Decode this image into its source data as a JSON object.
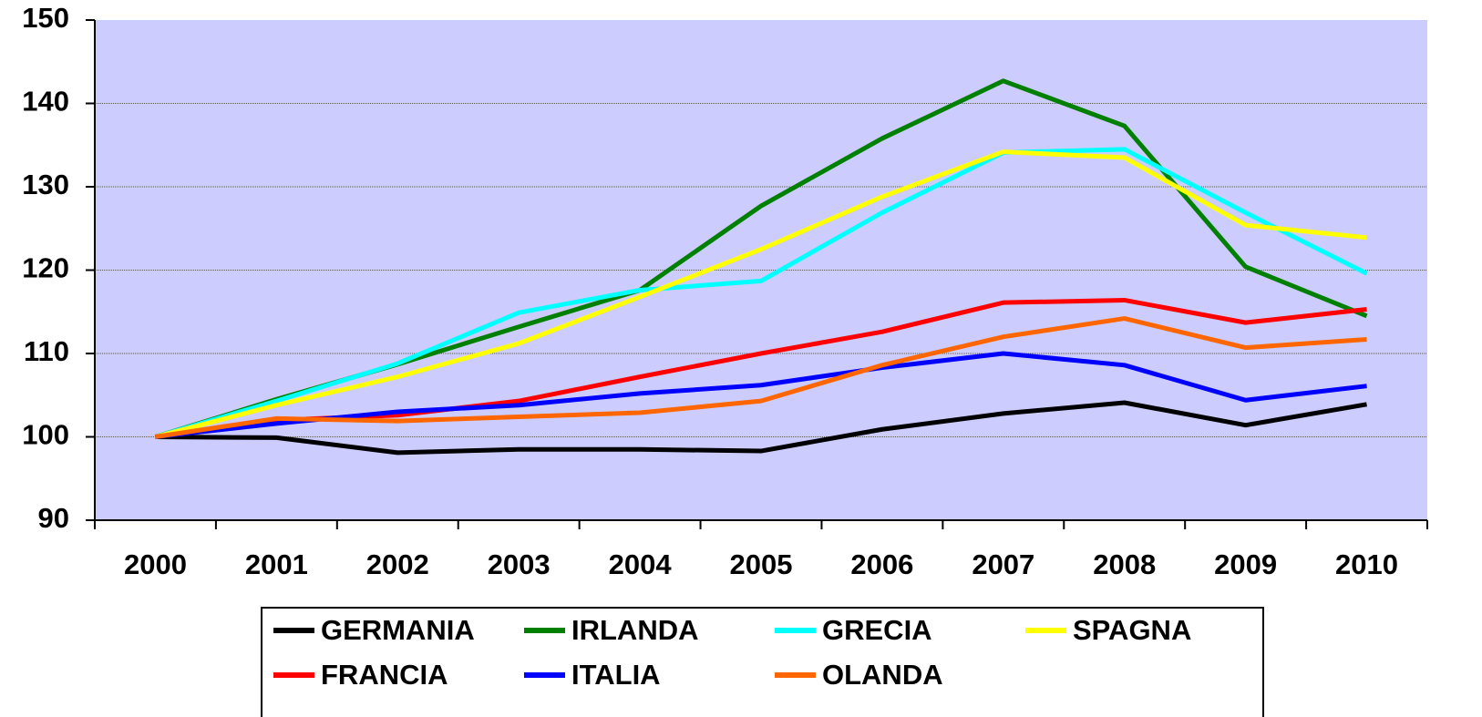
{
  "chart_data": {
    "type": "line",
    "categories": [
      "2000",
      "2001",
      "2002",
      "2003",
      "2004",
      "2005",
      "2006",
      "2007",
      "2008",
      "2009",
      "2010"
    ],
    "series": [
      {
        "name": "GERMANIA",
        "color": "#000000",
        "values": [
          100,
          99.9,
          98.1,
          98.5,
          98.5,
          98.3,
          100.9,
          102.8,
          104.1,
          101.4,
          103.9
        ]
      },
      {
        "name": "IRLANDA",
        "color": "#008000",
        "values": [
          100,
          104.5,
          108.7,
          113.2,
          117.6,
          127.7,
          135.8,
          142.7,
          137.3,
          120.4,
          114.5
        ]
      },
      {
        "name": "GRECIA",
        "color": "#00FFFF",
        "values": [
          100,
          104.3,
          108.8,
          114.9,
          117.6,
          118.7,
          126.9,
          134.1,
          134.5,
          126.9,
          119.6
        ]
      },
      {
        "name": "SPAGNA",
        "color": "#FFFF00",
        "values": [
          100,
          103.8,
          107.2,
          111.2,
          116.8,
          122.5,
          128.8,
          134.2,
          133.5,
          125.4,
          123.9
        ]
      },
      {
        "name": "FRANCIA",
        "color": "#FF0000",
        "values": [
          100,
          102.0,
          102.6,
          104.3,
          107.2,
          110.0,
          112.6,
          116.1,
          116.4,
          113.7,
          115.3
        ]
      },
      {
        "name": "ITALIA",
        "color": "#0000FF",
        "values": [
          100,
          101.6,
          103.0,
          103.8,
          105.2,
          106.2,
          108.3,
          110.0,
          108.6,
          104.4,
          106.1
        ]
      },
      {
        "name": "OLANDA",
        "color": "#FF6600",
        "values": [
          100,
          102.2,
          101.9,
          102.4,
          102.9,
          104.3,
          108.6,
          112.0,
          114.2,
          110.7,
          111.7
        ]
      }
    ],
    "ylim": [
      90,
      150
    ],
    "yticks": [
      90,
      100,
      110,
      120,
      130,
      140,
      150
    ],
    "grid": true,
    "legend": "bottom"
  }
}
